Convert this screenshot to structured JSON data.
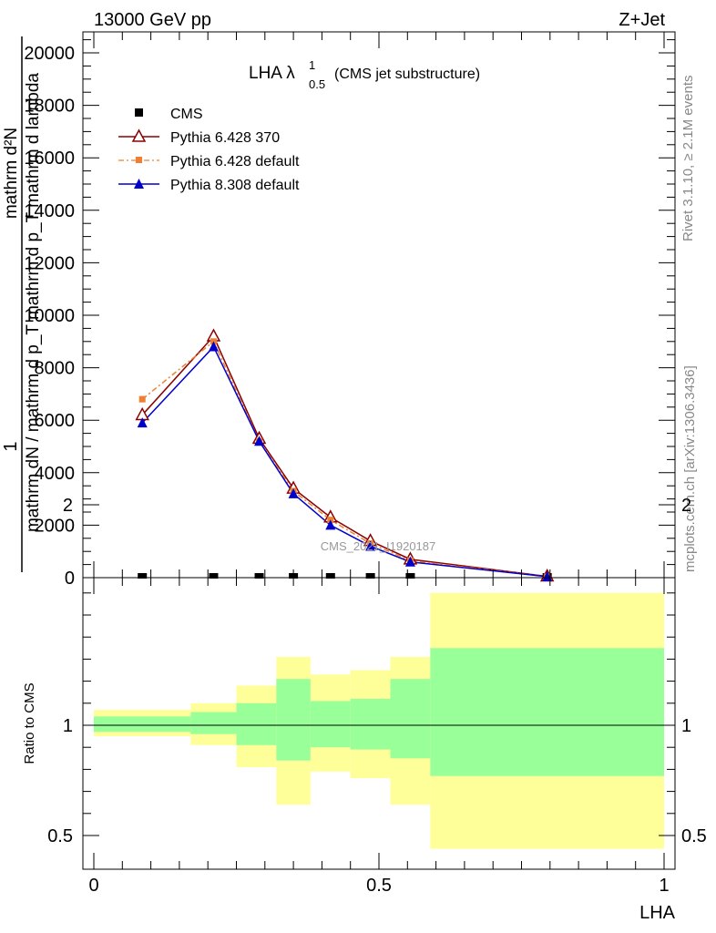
{
  "header": {
    "energy_label": "13000 GeV pp",
    "process_label": "Z+Jet"
  },
  "side_labels": {
    "rivet": "Rivet 3.1.10, ≥ 2.1M events",
    "mcplots": "mcplots.cern.ch [arXiv:1306.3436]"
  },
  "watermark": "CMS_2021_I1920187",
  "colors": {
    "cms": "#000000",
    "pythia6_370": "#8b0000",
    "pythia6_default": "#f08030",
    "pythia8_default": "#0000cc",
    "band_yellow": "#ffff99",
    "band_green": "#99ff99"
  },
  "chart_data": [
    {
      "type": "line",
      "title_main": "LHA λ",
      "title_sup": "1",
      "title_sub": "0.5",
      "title_suffix": "(CMS jet substructure)",
      "ylabel_numerator": "1",
      "ylabel_numerator_line2": "mathrm d²N",
      "ylabel_denominator": "mathrm dN / mathrm d p_T mathrm d p_T mathrm d lambda",
      "xlim": [
        0,
        1
      ],
      "ylim": [
        0,
        21000
      ],
      "y_ticks": [
        0,
        2000,
        4000,
        6000,
        8000,
        10000,
        12000,
        14000,
        16000,
        18000,
        20000
      ],
      "y_tick_labels": [
        "0",
        "2000",
        "4000",
        "6000",
        "8000",
        "10000",
        "12000",
        "14000",
        "16000",
        "18000",
        "20000"
      ],
      "legend_position": "top-left",
      "series": [
        {
          "name": "CMS",
          "marker": "square",
          "x": [
            0.085,
            0.21,
            0.29,
            0.35,
            0.415,
            0.485,
            0.555,
            0.795
          ],
          "y": [
            0,
            0,
            0,
            0,
            0,
            0,
            0,
            0
          ]
        },
        {
          "name": "Pythia 6.428 370",
          "marker": "open-triangle",
          "line": "solid",
          "x": [
            0.085,
            0.21,
            0.29,
            0.35,
            0.415,
            0.485,
            0.555,
            0.795
          ],
          "y": [
            6200,
            9200,
            5300,
            3400,
            2300,
            1400,
            700,
            50
          ]
        },
        {
          "name": "Pythia 6.428 default",
          "marker": "square",
          "line": "dashdot",
          "x": [
            0.085,
            0.21,
            0.29,
            0.35,
            0.415,
            0.485,
            0.555,
            0.795
          ],
          "y": [
            6800,
            9000,
            5200,
            3300,
            2200,
            1300,
            650,
            40
          ]
        },
        {
          "name": "Pythia 8.308 default",
          "marker": "triangle",
          "line": "solid",
          "x": [
            0.085,
            0.21,
            0.29,
            0.35,
            0.415,
            0.485,
            0.555,
            0.795
          ],
          "y": [
            5900,
            8800,
            5200,
            3200,
            2000,
            1200,
            600,
            40
          ]
        }
      ]
    },
    {
      "type": "area",
      "ylabel": "Ratio to CMS",
      "xlabel": "LHA",
      "xlim": [
        0,
        1
      ],
      "ylim": [
        0.4,
        2.3
      ],
      "x_ticks": [
        0,
        0.5,
        1
      ],
      "x_tick_labels": [
        "0",
        "0.5",
        "1"
      ],
      "y_ticks": [
        0.5,
        1,
        2
      ],
      "y_tick_labels": [
        "0.5",
        "1",
        "2"
      ],
      "reference_line": 1,
      "bins": [
        {
          "lo": 0.0,
          "hi": 0.17,
          "yellow": [
            0.95,
            1.07
          ],
          "green": [
            0.97,
            1.04
          ]
        },
        {
          "lo": 0.17,
          "hi": 0.25,
          "yellow": [
            0.91,
            1.1
          ],
          "green": [
            0.96,
            1.06
          ]
        },
        {
          "lo": 0.25,
          "hi": 0.32,
          "yellow": [
            0.81,
            1.18
          ],
          "green": [
            0.91,
            1.1
          ]
        },
        {
          "lo": 0.32,
          "hi": 0.38,
          "yellow": [
            0.64,
            1.31
          ],
          "green": [
            0.84,
            1.21
          ]
        },
        {
          "lo": 0.38,
          "hi": 0.45,
          "yellow": [
            0.79,
            1.23
          ],
          "green": [
            0.9,
            1.11
          ]
        },
        {
          "lo": 0.45,
          "hi": 0.52,
          "yellow": [
            0.76,
            1.25
          ],
          "green": [
            0.89,
            1.12
          ]
        },
        {
          "lo": 0.52,
          "hi": 0.59,
          "yellow": [
            0.64,
            1.31
          ],
          "green": [
            0.85,
            1.21
          ]
        },
        {
          "lo": 0.59,
          "hi": 1.0,
          "yellow": [
            0.44,
            1.6
          ],
          "green": [
            0.77,
            1.35
          ]
        }
      ]
    }
  ]
}
